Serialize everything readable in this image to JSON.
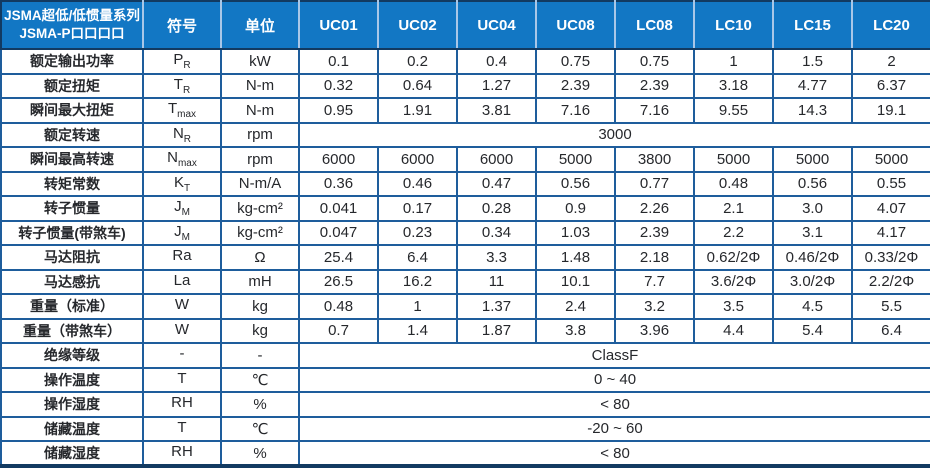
{
  "table": {
    "title_line1": "JSMA超低/低惯量系列",
    "title_line2": "JSMA-P口口口口",
    "symbol_header": "符号",
    "unit_header": "单位",
    "models": [
      "UC01",
      "UC02",
      "UC04",
      "UC08",
      "LC08",
      "LC10",
      "LC15",
      "LC20"
    ],
    "rows": [
      {
        "label": "额定输出功率",
        "symbol": "P",
        "symbol_sub": "R",
        "unit": "kW",
        "values": [
          "0.1",
          "0.2",
          "0.4",
          "0.75",
          "0.75",
          "1",
          "1.5",
          "2"
        ]
      },
      {
        "label": "额定扭矩",
        "symbol": "T",
        "symbol_sub": "R",
        "unit": "N-m",
        "values": [
          "0.32",
          "0.64",
          "1.27",
          "2.39",
          "2.39",
          "3.18",
          "4.77",
          "6.37"
        ]
      },
      {
        "label": "瞬间最大扭矩",
        "symbol": "T",
        "symbol_sub": "max",
        "unit": "N-m",
        "values": [
          "0.95",
          "1.91",
          "3.81",
          "7.16",
          "7.16",
          "9.55",
          "14.3",
          "19.1"
        ]
      },
      {
        "label": "额定转速",
        "symbol": "N",
        "symbol_sub": "R",
        "unit": "rpm",
        "span_value": "3000"
      },
      {
        "label": "瞬间最高转速",
        "symbol": "N",
        "symbol_sub": "max",
        "unit": "rpm",
        "values": [
          "6000",
          "6000",
          "6000",
          "5000",
          "3800",
          "5000",
          "5000",
          "5000"
        ]
      },
      {
        "label": "转矩常数",
        "symbol": "K",
        "symbol_sub": "T",
        "unit": "N-m/A",
        "values": [
          "0.36",
          "0.46",
          "0.47",
          "0.56",
          "0.77",
          "0.48",
          "0.56",
          "0.55"
        ]
      },
      {
        "label": "转子惯量",
        "symbol": "J",
        "symbol_sub": "M",
        "unit": "kg-cm²",
        "values": [
          "0.041",
          "0.17",
          "0.28",
          "0.9",
          "2.26",
          "2.1",
          "3.0",
          "4.07"
        ]
      },
      {
        "label": "转子惯量(带煞车)",
        "symbol": "J",
        "symbol_sub": "M",
        "unit": "kg-cm²",
        "values": [
          "0.047",
          "0.23",
          "0.34",
          "1.03",
          "2.39",
          "2.2",
          "3.1",
          "4.17"
        ]
      },
      {
        "label": "马达阻抗",
        "symbol": "Ra",
        "symbol_sub": "",
        "unit": "Ω",
        "values": [
          "25.4",
          "6.4",
          "3.3",
          "1.48",
          "2.18",
          "0.62/2Φ",
          "0.46/2Φ",
          "0.33/2Φ"
        ]
      },
      {
        "label": "马达感抗",
        "symbol": "La",
        "symbol_sub": "",
        "unit": "mH",
        "values": [
          "26.5",
          "16.2",
          "11",
          "10.1",
          "7.7",
          "3.6/2Φ",
          "3.0/2Φ",
          "2.2/2Φ"
        ]
      },
      {
        "label": "重量（标准）",
        "symbol": "W",
        "symbol_sub": "",
        "unit": "kg",
        "values": [
          "0.48",
          "1",
          "1.37",
          "2.4",
          "3.2",
          "3.5",
          "4.5",
          "5.5"
        ]
      },
      {
        "label": "重量（带煞车）",
        "symbol": "W",
        "symbol_sub": "",
        "unit": "kg",
        "values": [
          "0.7",
          "1.4",
          "1.87",
          "3.8",
          "3.96",
          "4.4",
          "5.4",
          "6.4"
        ]
      },
      {
        "label": "绝缘等级",
        "symbol": "-",
        "symbol_sub": "",
        "unit": "-",
        "span_value": "ClassF"
      },
      {
        "label": "操作温度",
        "symbol": "T",
        "symbol_sub": "",
        "unit": "℃",
        "span_value": "0 ~ 40"
      },
      {
        "label": "操作湿度",
        "symbol": "RH",
        "symbol_sub": "",
        "unit": "%",
        "span_value": "< 80"
      },
      {
        "label": "储藏温度",
        "symbol": "T",
        "symbol_sub": "",
        "unit": "℃",
        "span_value": "-20 ~ 60"
      },
      {
        "label": "储藏湿度",
        "symbol": "RH",
        "symbol_sub": "",
        "unit": "%",
        "span_value": "< 80"
      }
    ]
  },
  "colors": {
    "header_bg": "#1277c4",
    "grid_line": "#1e5d9c",
    "outer_border": "#123a61",
    "header_divider": "#a9c7e8",
    "header_text": "#ffffff",
    "body_text": "#26282c"
  }
}
